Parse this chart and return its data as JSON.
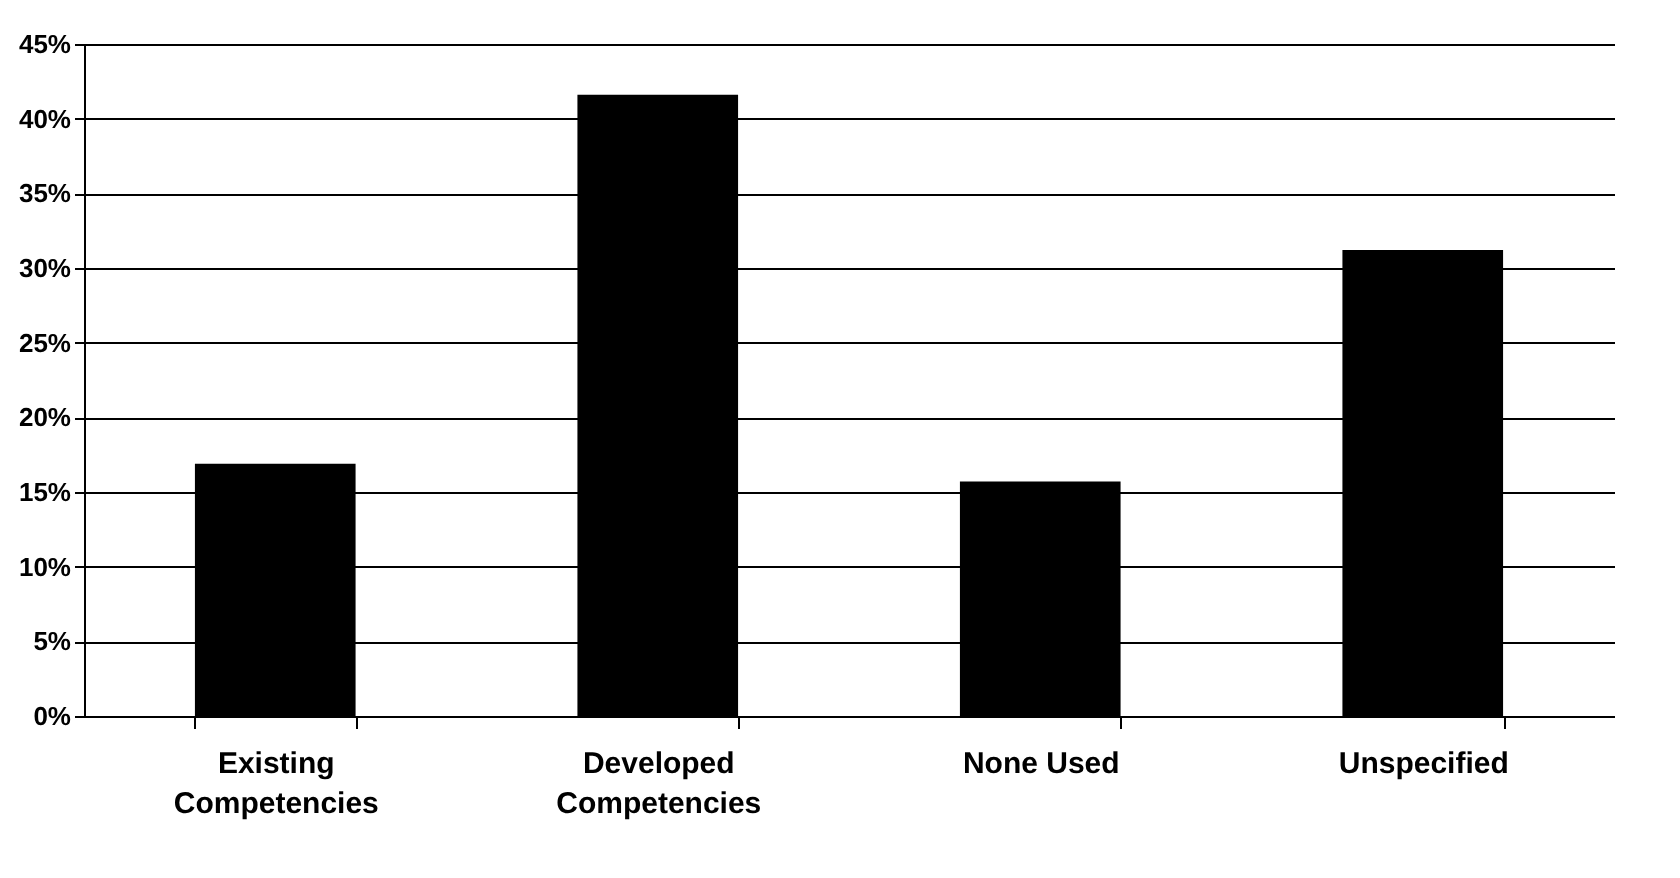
{
  "chart_data": {
    "type": "bar",
    "categories": [
      "Existing Competencies",
      "Developed Competencies",
      "None Used",
      "Unspecified"
    ],
    "values": [
      16.9,
      41.6,
      15.7,
      31.2
    ],
    "color": "#000000",
    "ylim": [
      0,
      45
    ],
    "yticks": [
      {
        "value": 0,
        "label": "0%"
      },
      {
        "value": 5,
        "label": "5%"
      },
      {
        "value": 10,
        "label": "10%"
      },
      {
        "value": 15,
        "label": "15%"
      },
      {
        "value": 20,
        "label": "20%"
      },
      {
        "value": 25,
        "label": "25%"
      },
      {
        "value": 30,
        "label": "30%"
      },
      {
        "value": 35,
        "label": "35%"
      },
      {
        "value": 40,
        "label": "40%"
      },
      {
        "value": 45,
        "label": "45%"
      }
    ],
    "grid": "y",
    "legend": false
  }
}
